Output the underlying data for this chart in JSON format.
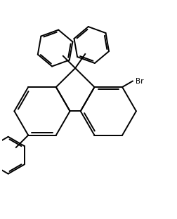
{
  "bg_color": "#ffffff",
  "line_color": "#000000",
  "lw": 1.4,
  "br_label": "Br",
  "figsize": [
    2.52,
    3.12
  ],
  "dpi": 100,
  "xlim": [
    -1.1,
    1.5
  ],
  "ylim": [
    -1.7,
    1.55
  ]
}
